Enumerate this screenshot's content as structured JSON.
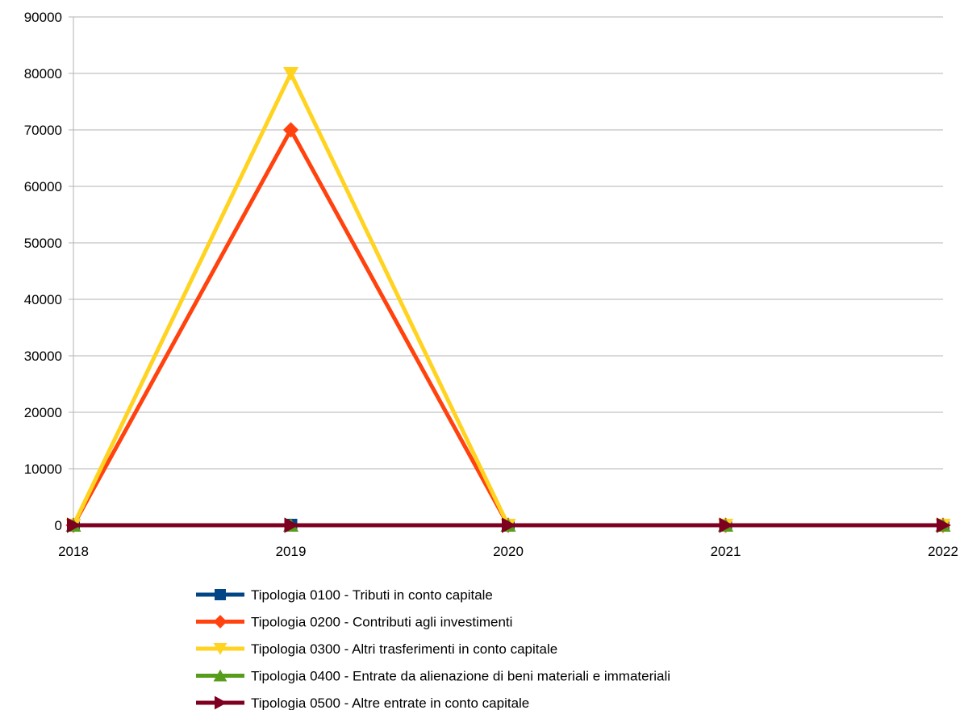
{
  "chart_data": {
    "type": "line",
    "title": "",
    "xlabel": "",
    "ylabel": "",
    "x": [
      "2018",
      "2019",
      "2020",
      "2021",
      "2022"
    ],
    "ylim": [
      0,
      90000
    ],
    "yticks": [
      "0",
      "10000",
      "20000",
      "30000",
      "40000",
      "50000",
      "60000",
      "70000",
      "80000",
      "90000"
    ],
    "grid": "horizontal",
    "legend_position": "bottom",
    "series": [
      {
        "name": "Tipologia 0100 - Tributi in conto capitale",
        "values": [
          0,
          0,
          0,
          0,
          0
        ],
        "color": "#004586",
        "marker": "square"
      },
      {
        "name": "Tipologia 0200 - Contributi agli investimenti",
        "values": [
          0,
          70000,
          0,
          0,
          0
        ],
        "color": "#ff420e",
        "marker": "diamond"
      },
      {
        "name": "Tipologia 0300 - Altri trasferimenti in conto capitale",
        "values": [
          0,
          80000,
          0,
          0,
          0
        ],
        "color": "#ffd320",
        "marker": "triangle-down"
      },
      {
        "name": "Tipologia 0400 - Entrate da alienazione di beni materiali e immateriali",
        "values": [
          0,
          0,
          0,
          0,
          0
        ],
        "color": "#579d1c",
        "marker": "triangle-up"
      },
      {
        "name": "Tipologia 0500 - Altre entrate in conto capitale",
        "values": [
          0,
          0,
          0,
          0,
          0
        ],
        "color": "#7e0021",
        "marker": "triangle-right"
      }
    ]
  }
}
